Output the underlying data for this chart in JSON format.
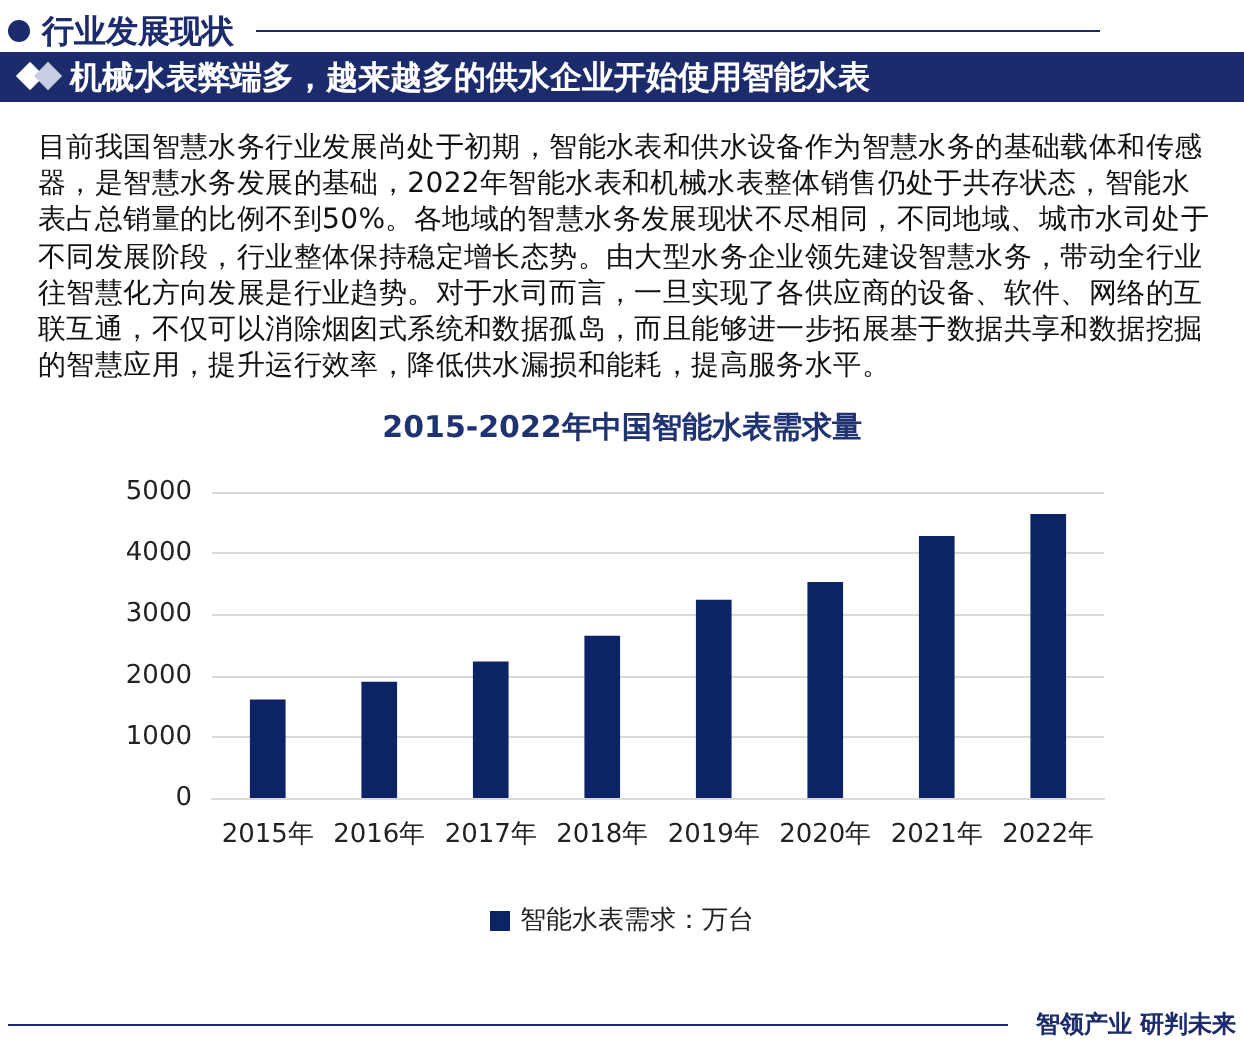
{
  "chart_data": {
    "type": "bar",
    "title": "2015-2022年中国智能水表需求量",
    "categories": [
      "2015年",
      "2016年",
      "2017年",
      "2018年",
      "2019年",
      "2020年",
      "2021年",
      "2022年"
    ],
    "series": [
      {
        "name": "智能水表需求：万台",
        "color": "#0c2466",
        "values": [
          1610,
          1900,
          2230,
          2650,
          3240,
          3530,
          4280,
          4640
        ]
      }
    ],
    "ylim": [
      0,
      5000
    ],
    "yticks": [
      0,
      1000,
      2000,
      3000,
      4000,
      5000
    ],
    "grid": "y",
    "legend": "bottom",
    "annotations": [
      "行业发展现状",
      "机械水表弊端多，越来越多的供水企业开始使用智能水表",
      "目前我国智慧水务行业发展尚处于初期，智能水表和供水设备作为智慧水务的基础载体和传感器，是智慧水务发展的基础，2022年智能水表和机械水表整体销售仍处于共存状态，智能水表占总销量的比例不到50%。各地域的智慧水务发展现状不尽相同，不同地域、城市水司处于不同发展阶段，行业整体保持稳定增长态势。由大型水务企业领先建设智慧水务，带动全行业往智慧化方向发展是行业趋势。对于水司而言，一旦实现了各供应商的设备、软件、网络的互联互通，不仅可以消除烟囱式系统和数据孤岛，而且能够进一步拓展基于数据共享和数据挖掘的智慧应用，提升运行效率，降低供水漏损和能耗，提高服务水平。",
      "智领产业 研判未来"
    ]
  }
}
